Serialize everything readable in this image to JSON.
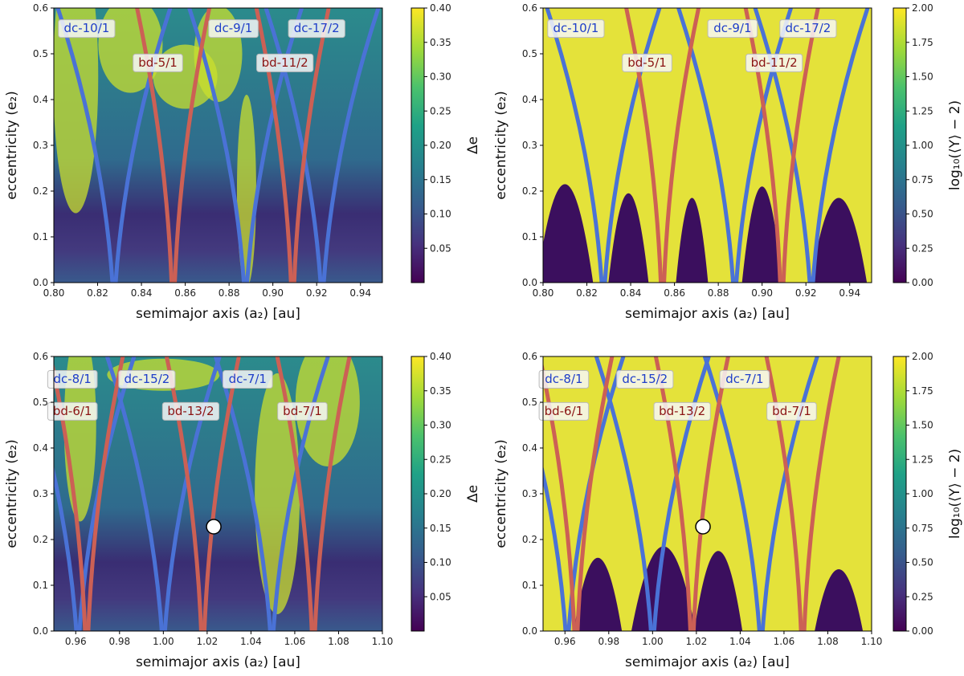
{
  "figure": {
    "description_free": true
  },
  "colors": {
    "dc": "#4a72d6",
    "bd": "#cc6055",
    "dc_text": "#1f3ec9",
    "bd_text": "#8b1414"
  },
  "chart_data": [
    {
      "type": "heatmap",
      "panel": "top-left",
      "quantity": "delta_e",
      "xlabel": "semimajor axis (a₂) [au]",
      "ylabel": "eccentricity (e₂)",
      "xlim": [
        0.8,
        0.95
      ],
      "ylim": [
        0.0,
        0.6
      ],
      "xticks": [
        0.8,
        0.82,
        0.84,
        0.86,
        0.88,
        0.9,
        0.92,
        0.94
      ],
      "yticks": [
        0.0,
        0.1,
        0.2,
        0.3,
        0.4,
        0.5,
        0.6
      ],
      "colorbar": {
        "label": "Δe",
        "min": 0.0,
        "max": 0.4,
        "ticks": [
          0.05,
          0.1,
          0.15,
          0.2,
          0.25,
          0.3,
          0.35,
          0.4
        ]
      },
      "resonances": [
        {
          "label": "dc-10/1",
          "family": "dc",
          "a": 0.8275,
          "x_label": 0.815,
          "y_label": 0.555
        },
        {
          "label": "dc-9/1",
          "family": "dc",
          "a": 0.8875,
          "x_label": 0.882,
          "y_label": 0.555
        },
        {
          "label": "dc-17/2",
          "family": "dc",
          "a": 0.9225,
          "x_label": 0.92,
          "y_label": 0.555
        },
        {
          "label": "bd-5/1",
          "family": "bd",
          "a": 0.8545,
          "x_label": 0.8475,
          "y_label": 0.48
        },
        {
          "label": "bd-11/2",
          "family": "bd",
          "a": 0.909,
          "x_label": 0.9055,
          "y_label": 0.48
        }
      ],
      "marker": null
    },
    {
      "type": "heatmap",
      "panel": "top-right",
      "quantity": "log_megno",
      "xlabel": "semimajor axis (a₂) [au]",
      "ylabel": "eccentricity (e₂)",
      "xlim": [
        0.8,
        0.95
      ],
      "ylim": [
        0.0,
        0.6
      ],
      "xticks": [
        0.8,
        0.82,
        0.84,
        0.86,
        0.88,
        0.9,
        0.92,
        0.94
      ],
      "yticks": [
        0.0,
        0.1,
        0.2,
        0.3,
        0.4,
        0.5,
        0.6
      ],
      "colorbar": {
        "label": "log₁₀(⟨Y⟩ − 2)",
        "min": 0.0,
        "max": 2.0,
        "ticks": [
          0.0,
          0.25,
          0.5,
          0.75,
          1.0,
          1.25,
          1.5,
          1.75,
          2.0
        ]
      },
      "resonances": [
        {
          "label": "dc-10/1",
          "family": "dc",
          "a": 0.8275,
          "x_label": 0.815,
          "y_label": 0.555
        },
        {
          "label": "dc-9/1",
          "family": "dc",
          "a": 0.8875,
          "x_label": 0.8865,
          "y_label": 0.555
        },
        {
          "label": "dc-17/2",
          "family": "dc",
          "a": 0.9225,
          "x_label": 0.921,
          "y_label": 0.555
        },
        {
          "label": "bd-5/1",
          "family": "bd",
          "a": 0.8545,
          "x_label": 0.8475,
          "y_label": 0.48
        },
        {
          "label": "bd-11/2",
          "family": "bd",
          "a": 0.909,
          "x_label": 0.9055,
          "y_label": 0.48
        }
      ],
      "marker": null
    },
    {
      "type": "heatmap",
      "panel": "bottom-left",
      "quantity": "delta_e",
      "xlabel": "semimajor axis (a₂) [au]",
      "ylabel": "eccentricity (e₂)",
      "xlim": [
        0.95,
        1.1
      ],
      "ylim": [
        0.0,
        0.6
      ],
      "xticks": [
        0.96,
        0.98,
        1.0,
        1.02,
        1.04,
        1.06,
        1.08,
        1.1
      ],
      "yticks": [
        0.0,
        0.1,
        0.2,
        0.3,
        0.4,
        0.5,
        0.6
      ],
      "colorbar": {
        "label": "Δe",
        "min": 0.0,
        "max": 0.4,
        "ticks": [
          0.05,
          0.1,
          0.15,
          0.2,
          0.25,
          0.3,
          0.35,
          0.4
        ]
      },
      "resonances": [
        {
          "label": "dc-8/1",
          "family": "dc",
          "a": 0.961,
          "x_label": 0.9585,
          "y_label": 0.55
        },
        {
          "label": "dc-15/2",
          "family": "dc",
          "a": 1.0,
          "x_label": 0.9925,
          "y_label": 0.55
        },
        {
          "label": "dc-7/1",
          "family": "dc",
          "a": 1.0495,
          "x_label": 1.0385,
          "y_label": 0.55
        },
        {
          "label": "bd-6/1",
          "family": "bd",
          "a": 0.965,
          "x_label": 0.9585,
          "y_label": 0.48
        },
        {
          "label": "bd-13/2",
          "family": "bd",
          "a": 1.018,
          "x_label": 1.0125,
          "y_label": 0.48
        },
        {
          "label": "bd-7/1",
          "family": "bd",
          "a": 1.0685,
          "x_label": 1.0635,
          "y_label": 0.48
        }
      ],
      "marker": {
        "a": 1.023,
        "e": 0.228
      }
    },
    {
      "type": "heatmap",
      "panel": "bottom-right",
      "quantity": "log_megno",
      "xlabel": "semimajor axis (a₂) [au]",
      "ylabel": "eccentricity (e₂)",
      "xlim": [
        0.95,
        1.1
      ],
      "ylim": [
        0.0,
        0.6
      ],
      "xticks": [
        0.96,
        0.98,
        1.0,
        1.02,
        1.04,
        1.06,
        1.08,
        1.1
      ],
      "yticks": [
        0.0,
        0.1,
        0.2,
        0.3,
        0.4,
        0.5,
        0.6
      ],
      "colorbar": {
        "label": "log₁₀(⟨Y⟩ − 2)",
        "min": 0.0,
        "max": 2.0,
        "ticks": [
          0.0,
          0.25,
          0.5,
          0.75,
          1.0,
          1.25,
          1.5,
          1.75,
          2.0
        ]
      },
      "resonances": [
        {
          "label": "dc-8/1",
          "family": "dc",
          "a": 0.961,
          "x_label": 0.9595,
          "y_label": 0.55
        },
        {
          "label": "dc-15/2",
          "family": "dc",
          "a": 1.0,
          "x_label": 0.9965,
          "y_label": 0.55
        },
        {
          "label": "dc-7/1",
          "family": "dc",
          "a": 1.0495,
          "x_label": 1.042,
          "y_label": 0.55
        },
        {
          "label": "bd-6/1",
          "family": "bd",
          "a": 0.965,
          "x_label": 0.9595,
          "y_label": 0.48
        },
        {
          "label": "bd-13/2",
          "family": "bd",
          "a": 1.018,
          "x_label": 1.0135,
          "y_label": 0.48
        },
        {
          "label": "bd-7/1",
          "family": "bd",
          "a": 1.0685,
          "x_label": 1.0635,
          "y_label": 0.48
        }
      ],
      "marker": {
        "a": 1.023,
        "e": 0.228
      }
    }
  ]
}
